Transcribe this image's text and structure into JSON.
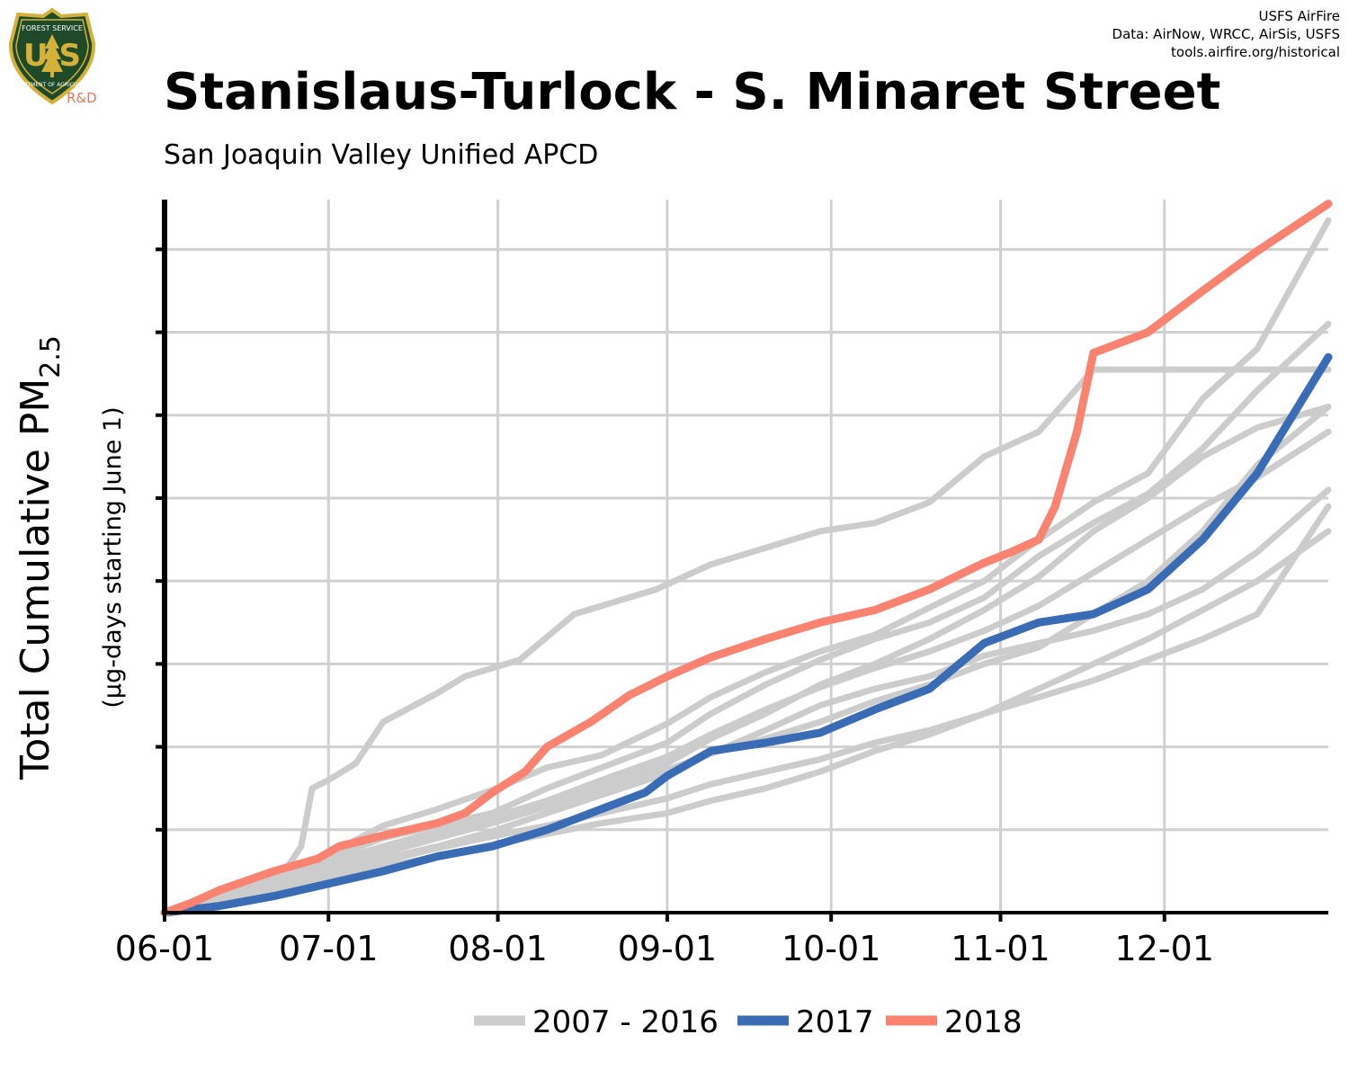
{
  "header": {
    "credit_line1": "USFS AirFire",
    "credit_line2": "Data: AirNow, WRCC, AirSis, USFS",
    "credit_line3": "tools.airfire.org/historical",
    "title": "Stanislaus-Turlock - S. Minaret Street",
    "subtitle": "San Joaquin Valley Unified APCD"
  },
  "logo": {
    "top_text": "FOREST SERVICE",
    "letters": "U S",
    "bottom_text": "DEPARTMENT OF AGRICULTURE",
    "tag": "R&D",
    "icon": "usfs-shield-icon",
    "colors": {
      "shield": "#1f4a2a",
      "rim": "#d4b13a",
      "tag": "#e8735a"
    }
  },
  "chart_data": {
    "type": "line",
    "title": "Stanislaus-Turlock - S. Minaret Street",
    "subtitle": "San Joaquin Valley Unified APCD",
    "ylabel_main": "Total Cumulative PM",
    "ylabel_sub": "2.5",
    "ylabel_units": "(µg-days starting June 1)",
    "x_ticks": [
      "06-01",
      "07-01",
      "08-01",
      "09-01",
      "10-01",
      "11-01",
      "12-01"
    ],
    "x_tick_days": [
      0,
      30,
      61,
      92,
      122,
      153,
      183
    ],
    "xlim": [
      0,
      213
    ],
    "ylim": [
      0,
      8.6
    ],
    "y_tick_count": 8,
    "y_tick_labels_shown": false,
    "grid": true,
    "legend_position": "bottom",
    "legend": [
      "2007 - 2016",
      "2017",
      "2018"
    ],
    "colors": {
      "historical": "#cccccc",
      "2017": "#3a6bb5",
      "2018": "#f98270"
    },
    "series": [
      {
        "name": "2018",
        "color": "#f98270",
        "points": [
          [
            0,
            0
          ],
          [
            5,
            0.12
          ],
          [
            10,
            0.27
          ],
          [
            20,
            0.5
          ],
          [
            28,
            0.65
          ],
          [
            32,
            0.8
          ],
          [
            40,
            0.93
          ],
          [
            50,
            1.08
          ],
          [
            55,
            1.2
          ],
          [
            60,
            1.45
          ],
          [
            66,
            1.7
          ],
          [
            70,
            2.0
          ],
          [
            78,
            2.3
          ],
          [
            85,
            2.62
          ],
          [
            92,
            2.85
          ],
          [
            100,
            3.08
          ],
          [
            110,
            3.3
          ],
          [
            120,
            3.5
          ],
          [
            130,
            3.65
          ],
          [
            140,
            3.9
          ],
          [
            150,
            4.22
          ],
          [
            155,
            4.35
          ],
          [
            160,
            4.5
          ],
          [
            163,
            4.9
          ],
          [
            167,
            5.8
          ],
          [
            170,
            6.75
          ],
          [
            180,
            7.0
          ],
          [
            190,
            7.5
          ],
          [
            200,
            7.98
          ],
          [
            213,
            8.55
          ]
        ]
      },
      {
        "name": "2017",
        "color": "#3a6bb5",
        "points": [
          [
            0,
            0
          ],
          [
            10,
            0.08
          ],
          [
            20,
            0.2
          ],
          [
            30,
            0.35
          ],
          [
            40,
            0.5
          ],
          [
            50,
            0.68
          ],
          [
            60,
            0.8
          ],
          [
            70,
            1.0
          ],
          [
            80,
            1.25
          ],
          [
            88,
            1.45
          ],
          [
            92,
            1.65
          ],
          [
            100,
            1.95
          ],
          [
            110,
            2.05
          ],
          [
            120,
            2.17
          ],
          [
            130,
            2.45
          ],
          [
            140,
            2.7
          ],
          [
            150,
            3.25
          ],
          [
            160,
            3.5
          ],
          [
            170,
            3.6
          ],
          [
            180,
            3.9
          ],
          [
            190,
            4.5
          ],
          [
            200,
            5.3
          ],
          [
            213,
            6.7
          ]
        ]
      },
      {
        "name": "2007 - 2016",
        "color": "#cccccc",
        "points": [
          [
            0,
            0
          ],
          [
            15,
            0.35
          ],
          [
            22,
            0.5
          ],
          [
            25,
            0.8
          ],
          [
            27,
            1.5
          ],
          [
            30,
            1.6
          ],
          [
            35,
            1.8
          ],
          [
            40,
            2.3
          ],
          [
            50,
            2.65
          ],
          [
            55,
            2.85
          ],
          [
            65,
            3.05
          ],
          [
            75,
            3.6
          ],
          [
            90,
            3.9
          ],
          [
            100,
            4.2
          ],
          [
            110,
            4.4
          ],
          [
            120,
            4.6
          ],
          [
            130,
            4.7
          ],
          [
            140,
            4.95
          ],
          [
            150,
            5.5
          ],
          [
            160,
            5.8
          ],
          [
            170,
            6.55
          ],
          [
            180,
            6.55
          ],
          [
            190,
            6.55
          ],
          [
            213,
            6.55
          ]
        ]
      },
      {
        "name": "2007 - 2016",
        "color": "#cccccc",
        "points": [
          [
            0,
            0
          ],
          [
            20,
            0.45
          ],
          [
            30,
            0.7
          ],
          [
            40,
            1.05
          ],
          [
            50,
            1.25
          ],
          [
            60,
            1.48
          ],
          [
            70,
            1.75
          ],
          [
            80,
            1.9
          ],
          [
            92,
            2.28
          ],
          [
            100,
            2.6
          ],
          [
            110,
            2.9
          ],
          [
            120,
            3.15
          ],
          [
            130,
            3.35
          ],
          [
            140,
            3.68
          ],
          [
            150,
            4.0
          ],
          [
            160,
            4.5
          ],
          [
            170,
            4.95
          ],
          [
            180,
            5.3
          ],
          [
            190,
            6.2
          ],
          [
            200,
            6.8
          ],
          [
            213,
            8.35
          ]
        ]
      },
      {
        "name": "2007 - 2016",
        "color": "#cccccc",
        "points": [
          [
            0,
            0
          ],
          [
            20,
            0.4
          ],
          [
            30,
            0.65
          ],
          [
            40,
            0.9
          ],
          [
            50,
            1.05
          ],
          [
            60,
            1.2
          ],
          [
            70,
            1.5
          ],
          [
            80,
            1.75
          ],
          [
            92,
            2.05
          ],
          [
            100,
            2.4
          ],
          [
            110,
            2.75
          ],
          [
            120,
            3.05
          ],
          [
            130,
            3.3
          ],
          [
            140,
            3.5
          ],
          [
            150,
            3.8
          ],
          [
            160,
            4.3
          ],
          [
            170,
            4.7
          ],
          [
            180,
            5.05
          ],
          [
            190,
            5.6
          ],
          [
            200,
            6.3
          ],
          [
            213,
            7.1
          ]
        ]
      },
      {
        "name": "2007 - 2016",
        "color": "#cccccc",
        "points": [
          [
            0,
            0
          ],
          [
            20,
            0.35
          ],
          [
            30,
            0.55
          ],
          [
            40,
            0.75
          ],
          [
            50,
            0.95
          ],
          [
            60,
            1.12
          ],
          [
            70,
            1.32
          ],
          [
            80,
            1.55
          ],
          [
            92,
            1.8
          ],
          [
            100,
            2.1
          ],
          [
            110,
            2.4
          ],
          [
            120,
            2.75
          ],
          [
            130,
            3.0
          ],
          [
            140,
            3.3
          ],
          [
            150,
            3.65
          ],
          [
            160,
            4.05
          ],
          [
            170,
            4.6
          ],
          [
            180,
            5.0
          ],
          [
            190,
            5.5
          ],
          [
            200,
            5.85
          ],
          [
            213,
            6.1
          ]
        ]
      },
      {
        "name": "2007 - 2016",
        "color": "#cccccc",
        "points": [
          [
            0,
            0
          ],
          [
            20,
            0.3
          ],
          [
            30,
            0.48
          ],
          [
            40,
            0.65
          ],
          [
            50,
            0.8
          ],
          [
            60,
            0.98
          ],
          [
            70,
            1.2
          ],
          [
            80,
            1.42
          ],
          [
            92,
            1.68
          ],
          [
            100,
            1.92
          ],
          [
            110,
            2.2
          ],
          [
            120,
            2.5
          ],
          [
            130,
            2.7
          ],
          [
            140,
            2.85
          ],
          [
            150,
            3.1
          ],
          [
            160,
            3.25
          ],
          [
            170,
            3.4
          ],
          [
            180,
            3.6
          ],
          [
            190,
            3.9
          ],
          [
            200,
            4.35
          ],
          [
            213,
            5.1
          ]
        ]
      },
      {
        "name": "2007 - 2016",
        "color": "#cccccc",
        "points": [
          [
            0,
            0
          ],
          [
            20,
            0.28
          ],
          [
            30,
            0.45
          ],
          [
            40,
            0.62
          ],
          [
            50,
            0.78
          ],
          [
            60,
            0.92
          ],
          [
            70,
            1.05
          ],
          [
            80,
            1.2
          ],
          [
            92,
            1.38
          ],
          [
            100,
            1.55
          ],
          [
            110,
            1.7
          ],
          [
            120,
            1.85
          ],
          [
            130,
            2.05
          ],
          [
            140,
            2.2
          ],
          [
            150,
            2.4
          ],
          [
            160,
            2.7
          ],
          [
            170,
            3.0
          ],
          [
            180,
            3.3
          ],
          [
            190,
            3.65
          ],
          [
            200,
            4.0
          ],
          [
            213,
            4.6
          ]
        ]
      },
      {
        "name": "2007 - 2016",
        "color": "#cccccc",
        "points": [
          [
            0,
            0
          ],
          [
            20,
            0.25
          ],
          [
            30,
            0.4
          ],
          [
            40,
            0.55
          ],
          [
            50,
            0.68
          ],
          [
            60,
            0.82
          ],
          [
            70,
            0.95
          ],
          [
            80,
            1.08
          ],
          [
            92,
            1.2
          ],
          [
            100,
            1.35
          ],
          [
            110,
            1.5
          ],
          [
            120,
            1.7
          ],
          [
            130,
            1.95
          ],
          [
            140,
            2.15
          ],
          [
            150,
            2.4
          ],
          [
            160,
            2.6
          ],
          [
            170,
            2.8
          ],
          [
            180,
            3.05
          ],
          [
            190,
            3.3
          ],
          [
            200,
            3.6
          ],
          [
            213,
            4.9
          ]
        ]
      },
      {
        "name": "2007 - 2016",
        "color": "#cccccc",
        "points": [
          [
            0,
            0
          ],
          [
            20,
            0.35
          ],
          [
            30,
            0.55
          ],
          [
            40,
            0.72
          ],
          [
            50,
            0.9
          ],
          [
            60,
            1.08
          ],
          [
            70,
            1.28
          ],
          [
            80,
            1.5
          ],
          [
            92,
            1.72
          ],
          [
            100,
            1.92
          ],
          [
            110,
            2.1
          ],
          [
            120,
            2.3
          ],
          [
            130,
            2.55
          ],
          [
            140,
            2.75
          ],
          [
            150,
            3.0
          ],
          [
            160,
            3.2
          ],
          [
            170,
            3.6
          ],
          [
            180,
            4.0
          ],
          [
            190,
            4.6
          ],
          [
            200,
            5.4
          ],
          [
            213,
            6.1
          ]
        ]
      },
      {
        "name": "2007 - 2016",
        "color": "#cccccc",
        "points": [
          [
            0,
            0
          ],
          [
            20,
            0.38
          ],
          [
            30,
            0.6
          ],
          [
            40,
            0.8
          ],
          [
            50,
            0.98
          ],
          [
            60,
            1.15
          ],
          [
            70,
            1.35
          ],
          [
            80,
            1.6
          ],
          [
            92,
            1.88
          ],
          [
            100,
            2.15
          ],
          [
            110,
            2.45
          ],
          [
            120,
            2.72
          ],
          [
            130,
            2.95
          ],
          [
            140,
            3.15
          ],
          [
            150,
            3.4
          ],
          [
            160,
            3.7
          ],
          [
            170,
            4.1
          ],
          [
            180,
            4.5
          ],
          [
            190,
            4.9
          ],
          [
            200,
            5.25
          ],
          [
            213,
            5.8
          ]
        ]
      }
    ]
  }
}
